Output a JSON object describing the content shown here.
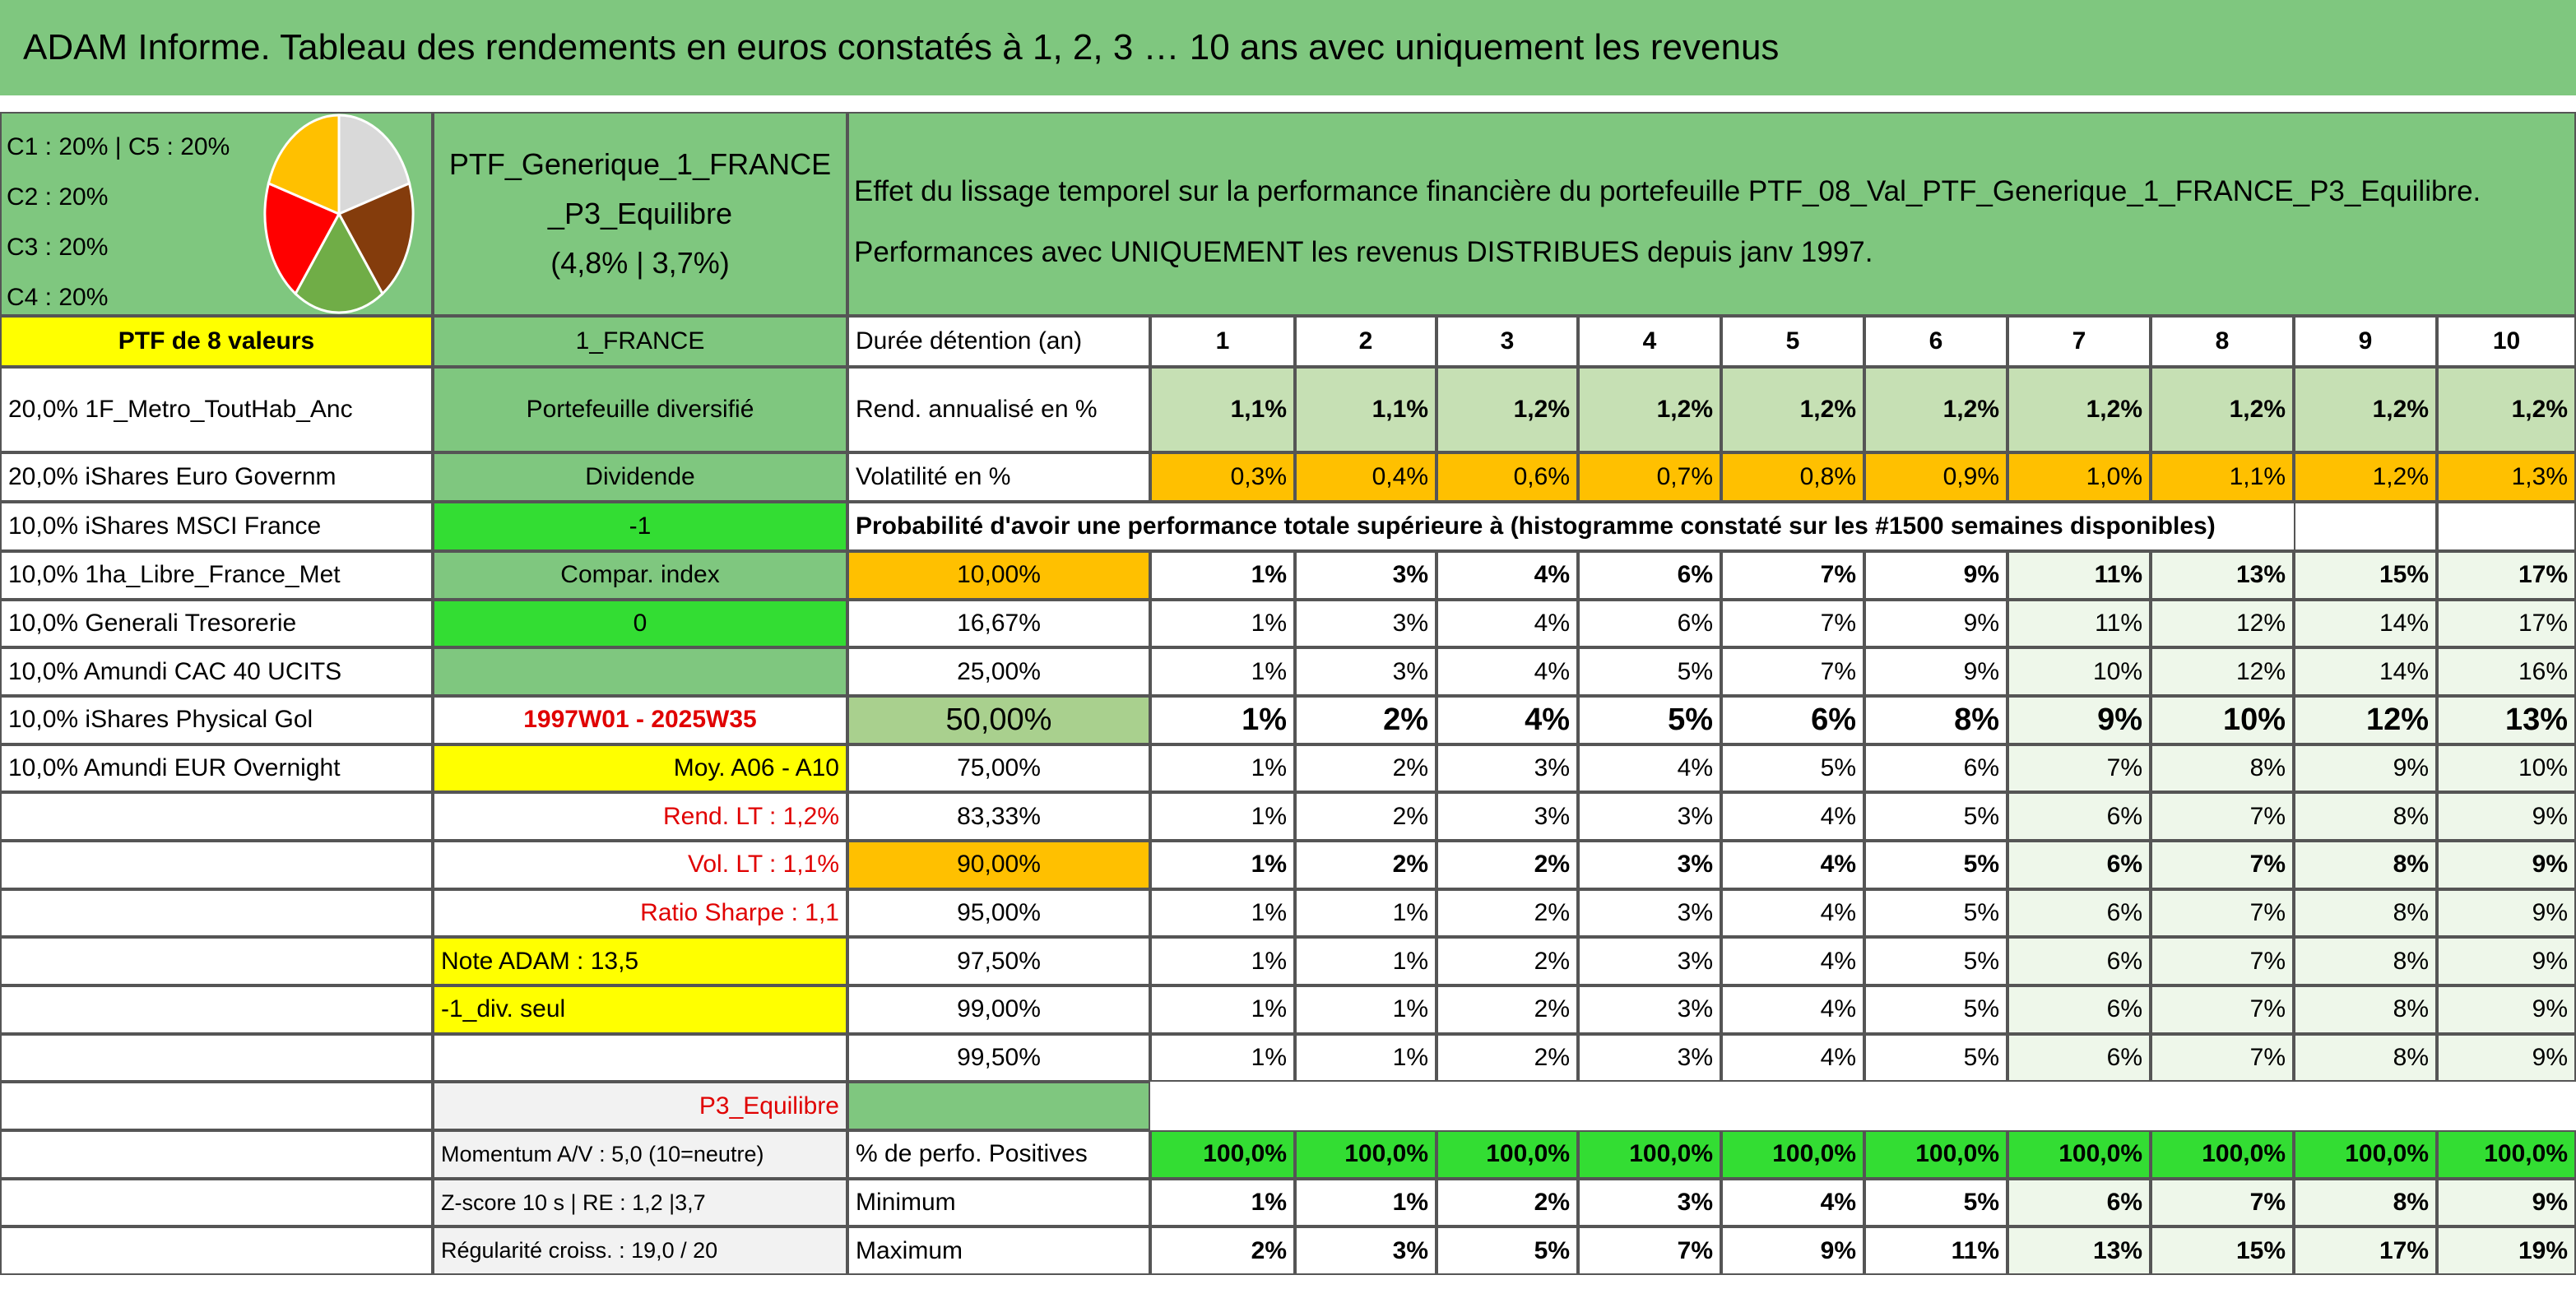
{
  "title": "ADAM Informe. Tableau des rendements en euros constatés à 1, 2, 3 … 10 ans avec uniquement les revenus",
  "pie": {
    "legend": [
      "C1 : 20% | C5 : 20%",
      "C2 : 20%",
      "C3 : 20%",
      "C4 : 20%"
    ],
    "values": [
      20,
      20,
      20,
      20,
      20
    ],
    "colors": [
      "#d9d9d9",
      "#843c0c",
      "#70ad47",
      "#ff0000",
      "#ffc000"
    ]
  },
  "portfolio": {
    "name": "PTF_Generique_1_FRANCE_P3_Equilibre",
    "perf": "(4,8% | 3,7%)"
  },
  "description": [
    "Effet du lissage temporel sur la performance financière du portefeuille PTF_08_Val_PTF_Generique_1_FRANCE_P3_Equilibre.",
    "Performances avec UNIQUEMENT les revenus DISTRIBUES depuis janv 1997."
  ],
  "table": {
    "rows": [
      {
        "left": "PTF de 8 valeurs",
        "mid": "1_FRANCE",
        "label": "Durée détention (an)",
        "cells": [
          1,
          2,
          3,
          4,
          5,
          6,
          7,
          8,
          9,
          10
        ]
      },
      {
        "left": "20,0% 1F_Metro_ToutHab_Anc",
        "mid": "Portefeuille diversifié",
        "label": "Rend. annualisé en %",
        "cells": [
          "1,1%",
          "1,1%",
          "1,2%",
          "1,2%",
          "1,2%",
          "1,2%",
          "1,2%",
          "1,2%",
          "1,2%",
          "1,2%"
        ]
      },
      {
        "left": "20,0% iShares Euro Governm",
        "mid": "Dividende",
        "label": "Volatilité en %",
        "cells": [
          "0,3%",
          "0,4%",
          "0,6%",
          "0,7%",
          "0,8%",
          "0,9%",
          "1,0%",
          "1,1%",
          "1,2%",
          "1,3%"
        ]
      },
      {
        "left": "10,0% iShares MSCI France",
        "mid": "-1",
        "label": "Probabilité d'avoir une performance totale supérieure à (histogramme constaté sur les #1500 semaines disponibles)"
      },
      {
        "left": "10,0% 1ha_Libre_France_Met",
        "mid": "Compar. index",
        "label": "10,00%",
        "cells": [
          "1%",
          "3%",
          "4%",
          "6%",
          "7%",
          "9%",
          "11%",
          "13%",
          "15%",
          "17%"
        ]
      },
      {
        "left": "10,0% Generali Tresorerie",
        "mid": "0",
        "label": "16,67%",
        "cells": [
          "1%",
          "3%",
          "4%",
          "6%",
          "7%",
          "9%",
          "11%",
          "12%",
          "14%",
          "17%"
        ]
      },
      {
        "left": "10,0% Amundi CAC 40 UCITS",
        "label": "25,00%",
        "cells": [
          "1%",
          "3%",
          "4%",
          "5%",
          "7%",
          "9%",
          "10%",
          "12%",
          "14%",
          "16%"
        ]
      },
      {
        "left": "10,0% iShares Physical Gol",
        "mid": "1997W01 - 2025W35",
        "label": "50,00%",
        "cells": [
          "1%",
          "2%",
          "4%",
          "5%",
          "6%",
          "8%",
          "9%",
          "10%",
          "12%",
          "13%"
        ]
      },
      {
        "left": "10,0% Amundi EUR Overnight",
        "mid": "Moy. A06 - A10",
        "label": "75,00%",
        "cells": [
          "1%",
          "2%",
          "3%",
          "4%",
          "5%",
          "6%",
          "7%",
          "8%",
          "9%",
          "10%"
        ]
      },
      {
        "mid": "Rend. LT : 1,2%",
        "label": "83,33%",
        "cells": [
          "1%",
          "2%",
          "3%",
          "3%",
          "4%",
          "5%",
          "6%",
          "7%",
          "8%",
          "9%"
        ]
      },
      {
        "mid": "Vol. LT : 1,1%",
        "label": "90,00%",
        "cells": [
          "1%",
          "2%",
          "2%",
          "3%",
          "4%",
          "5%",
          "6%",
          "7%",
          "8%",
          "9%"
        ]
      },
      {
        "mid": "Ratio Sharpe : 1,1",
        "label": "95,00%",
        "cells": [
          "1%",
          "1%",
          "2%",
          "3%",
          "4%",
          "5%",
          "6%",
          "7%",
          "8%",
          "9%"
        ]
      },
      {
        "mid": "Note ADAM : 13,5",
        "label": "97,50%",
        "cells": [
          "1%",
          "1%",
          "2%",
          "3%",
          "4%",
          "5%",
          "6%",
          "7%",
          "8%",
          "9%"
        ]
      },
      {
        "mid": "-1_div. seul",
        "label": "99,00%",
        "cells": [
          "1%",
          "1%",
          "2%",
          "3%",
          "4%",
          "5%",
          "6%",
          "7%",
          "8%",
          "9%"
        ]
      },
      {
        "label": "99,50%",
        "cells": [
          "1%",
          "1%",
          "2%",
          "3%",
          "4%",
          "5%",
          "6%",
          "7%",
          "8%",
          "9%"
        ]
      },
      {
        "mid": "P3_Equilibre"
      },
      {
        "mid": "Momentum A/V : 5,0 (10=neutre)",
        "label": "% de perfo. Positives",
        "cells": [
          "100,0%",
          "100,0%",
          "100,0%",
          "100,0%",
          "100,0%",
          "100,0%",
          "100,0%",
          "100,0%",
          "100,0%",
          "100,0%"
        ]
      },
      {
        "mid": "Z-score 10 s | RE : 1,2 |3,7",
        "label": "Minimum",
        "cells": [
          "1%",
          "1%",
          "2%",
          "3%",
          "4%",
          "5%",
          "6%",
          "7%",
          "8%",
          "9%"
        ]
      },
      {
        "mid": "Régularité croiss. : 19,0 / 20",
        "label": "Maximum",
        "cells": [
          "2%",
          "3%",
          "5%",
          "7%",
          "9%",
          "11%",
          "13%",
          "15%",
          "17%",
          "19%"
        ]
      }
    ]
  }
}
